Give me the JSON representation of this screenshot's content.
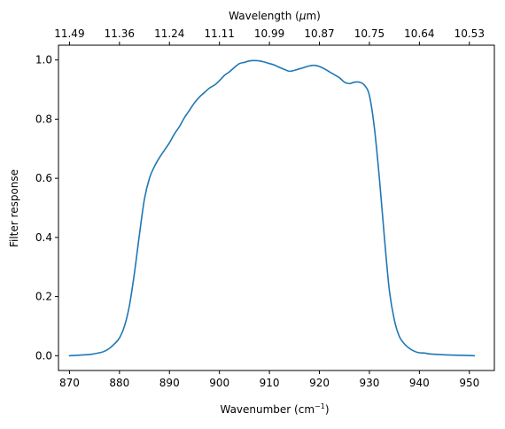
{
  "chart_data": {
    "type": "line",
    "title": "",
    "xlabel": "Wavenumber (cm",
    "xlabel_sup": "−1",
    "xlabel_close": ")",
    "x2label": "Wavelength (",
    "x2label_mu": "μ",
    "x2label_unit": "m)",
    "ylabel": "Filter response",
    "xlim": [
      867.8,
      955.0
    ],
    "ylim": [
      -0.05,
      1.05
    ],
    "xticks": [
      870,
      880,
      890,
      900,
      910,
      920,
      930,
      940,
      950
    ],
    "xtick_labels": [
      "870",
      "880",
      "890",
      "900",
      "910",
      "920",
      "930",
      "940",
      "950"
    ],
    "x2ticks": [
      870,
      880,
      890,
      900,
      910,
      920,
      930,
      940,
      950
    ],
    "x2tick_labels": [
      "11.49",
      "11.36",
      "11.24",
      "11.11",
      "10.99",
      "10.87",
      "10.75",
      "10.64",
      "10.53"
    ],
    "yticks": [
      0.0,
      0.2,
      0.4,
      0.6,
      0.8,
      1.0
    ],
    "ytick_labels": [
      "0.0",
      "0.2",
      "0.4",
      "0.6",
      "0.8",
      "1.0"
    ],
    "grid": false,
    "legend": "none",
    "line_color": "#1f77b4",
    "series": [
      {
        "x": [
          870.0,
          872.0,
          874.0,
          876.0,
          877.0,
          878.0,
          879.0,
          880.0,
          881.0,
          882.0,
          883.0,
          884.0,
          885.0,
          886.0,
          887.0,
          888.0,
          889.0,
          890.0,
          891.0,
          892.0,
          893.0,
          894.0,
          895.0,
          896.0,
          897.0,
          898.0,
          899.0,
          900.0,
          901.0,
          902.0,
          903.0,
          904.0,
          905.0,
          906.0,
          907.0,
          908.0,
          909.0,
          910.0,
          911.0,
          912.0,
          913.0,
          914.0,
          915.0,
          916.0,
          917.0,
          918.0,
          919.0,
          920.0,
          921.0,
          922.0,
          923.0,
          924.0,
          925.0,
          926.0,
          927.0,
          928.0,
          929.0,
          930.0,
          931.0,
          932.0,
          933.0,
          934.0,
          935.0,
          936.0,
          937.0,
          938.0,
          939.0,
          940.0,
          941.0,
          942.0,
          943.0,
          944.0,
          945.0,
          947.0,
          949.0,
          951.0
        ],
        "y": [
          0.0,
          0.002,
          0.004,
          0.01,
          0.015,
          0.025,
          0.04,
          0.06,
          0.1,
          0.17,
          0.28,
          0.41,
          0.53,
          0.6,
          0.64,
          0.67,
          0.695,
          0.72,
          0.75,
          0.775,
          0.805,
          0.83,
          0.855,
          0.875,
          0.89,
          0.905,
          0.915,
          0.93,
          0.948,
          0.96,
          0.975,
          0.988,
          0.992,
          0.997,
          0.998,
          0.997,
          0.993,
          0.988,
          0.983,
          0.975,
          0.968,
          0.962,
          0.965,
          0.97,
          0.975,
          0.98,
          0.982,
          0.978,
          0.97,
          0.96,
          0.95,
          0.94,
          0.925,
          0.92,
          0.925,
          0.925,
          0.915,
          0.88,
          0.77,
          0.6,
          0.4,
          0.22,
          0.12,
          0.065,
          0.04,
          0.025,
          0.015,
          0.01,
          0.009,
          0.006,
          0.005,
          0.004,
          0.003,
          0.002,
          0.001,
          0.0
        ]
      }
    ]
  }
}
